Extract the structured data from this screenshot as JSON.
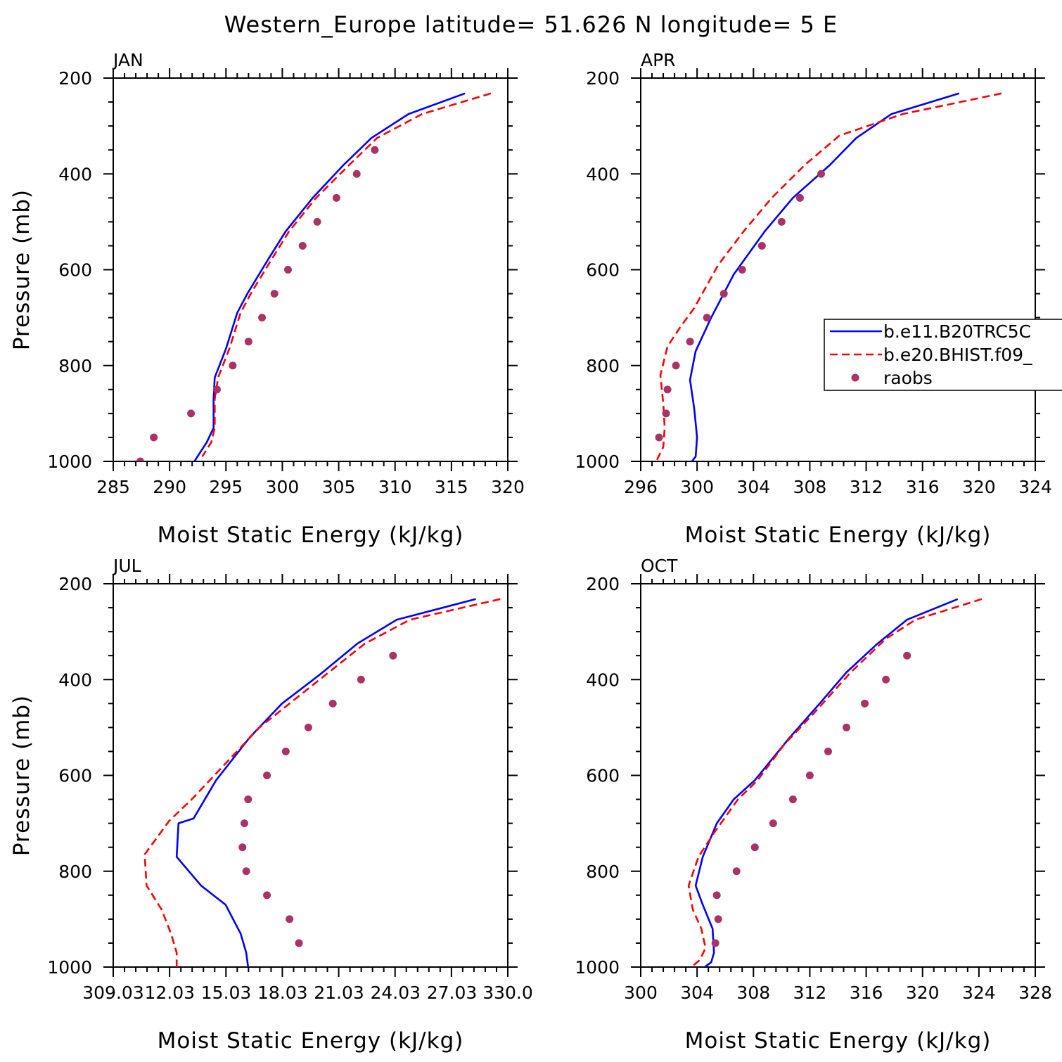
{
  "title": "Western_Europe  latitude= 51.626 N longitude= 5 E",
  "legend": {
    "placement": "inside-right of top-right panel (clipped)",
    "entries": [
      {
        "label": "b.e11.B20TRC5C",
        "color": "#0000ff",
        "style": "solid"
      },
      {
        "label": "b.e20.BHIST.f09_",
        "color": "#ff0000",
        "style": "dashed"
      },
      {
        "label": "raobs",
        "color": "#aa3366",
        "style": "dot"
      }
    ]
  },
  "colors": {
    "model1": "#0000ff",
    "model2": "#ff0000",
    "raobs": "#aa3366"
  },
  "chart_data": [
    {
      "type": "line",
      "panel_title": "JAN",
      "xlabel": "Moist Static Energy (kJ/kg)",
      "ylabel": "Pressure (mb)",
      "xlim": [
        285,
        320
      ],
      "ylim": [
        1000,
        200
      ],
      "xticks": [
        285,
        290,
        295,
        300,
        305,
        310,
        315,
        320
      ],
      "xtick_labels": [
        "285",
        "290",
        "295",
        "300",
        "305",
        "310",
        "315",
        "320"
      ],
      "yticks": [
        200,
        400,
        600,
        800,
        1000
      ],
      "ytick_labels": [
        "200",
        "400",
        "600",
        "800",
        "1000"
      ],
      "series": [
        {
          "name": "b.e11.B20TRC5C",
          "style": "solid",
          "color": "#0000ff",
          "points": [
            [
              316.2,
              232
            ],
            [
              311.2,
              275
            ],
            [
              307.9,
              325
            ],
            [
              305.4,
              382
            ],
            [
              302.7,
              450
            ],
            [
              300.3,
              520
            ],
            [
              298.7,
              580
            ],
            [
              296.9,
              650
            ],
            [
              296.0,
              690
            ],
            [
              295.0,
              765
            ],
            [
              294.0,
              825
            ],
            [
              293.9,
              870
            ],
            [
              293.9,
              930
            ],
            [
              293.3,
              960
            ],
            [
              292.2,
              1000
            ]
          ]
        },
        {
          "name": "b.e20.BHIST.f09_",
          "style": "dashed",
          "color": "#ff0000",
          "points": [
            [
              318.5,
              232
            ],
            [
              312.4,
              275
            ],
            [
              308.4,
              325
            ],
            [
              305.9,
              382
            ],
            [
              303.0,
              450
            ],
            [
              300.6,
              520
            ],
            [
              299.0,
              580
            ],
            [
              297.2,
              650
            ],
            [
              296.3,
              690
            ],
            [
              295.3,
              765
            ],
            [
              294.3,
              825
            ],
            [
              294.0,
              870
            ],
            [
              294.0,
              930
            ],
            [
              293.7,
              960
            ],
            [
              292.9,
              990
            ]
          ]
        },
        {
          "name": "raobs",
          "style": "dot",
          "color": "#aa3366",
          "points": [
            [
              308.2,
              350
            ],
            [
              306.6,
              400
            ],
            [
              304.8,
              450
            ],
            [
              303.1,
              500
            ],
            [
              301.8,
              550
            ],
            [
              300.5,
              600
            ],
            [
              299.3,
              650
            ],
            [
              298.2,
              700
            ],
            [
              297.0,
              750
            ],
            [
              295.6,
              800
            ],
            [
              294.2,
              850
            ],
            [
              291.9,
              900
            ],
            [
              288.6,
              950
            ],
            [
              287.4,
              1000
            ]
          ]
        }
      ]
    },
    {
      "type": "line",
      "panel_title": "APR",
      "xlabel": "Moist Static Energy (kJ/kg)",
      "ylabel": "",
      "xlim": [
        296,
        324
      ],
      "ylim": [
        1000,
        200
      ],
      "xticks": [
        296,
        300,
        304,
        308,
        312,
        316,
        320,
        324
      ],
      "xtick_labels": [
        "296",
        "300",
        "304",
        "308",
        "312",
        "316",
        "320",
        "324"
      ],
      "yticks": [
        200,
        400,
        600,
        800,
        1000
      ],
      "ytick_labels": [
        "200",
        "400",
        "600",
        "800",
        "1000"
      ],
      "series": [
        {
          "name": "b.e11.B20TRC5C",
          "style": "solid",
          "color": "#0000ff",
          "points": [
            [
              318.6,
              232
            ],
            [
              313.8,
              275
            ],
            [
              311.3,
              325
            ],
            [
              309.4,
              382
            ],
            [
              306.8,
              450
            ],
            [
              304.8,
              520
            ],
            [
              302.6,
              610
            ],
            [
              301.0,
              700
            ],
            [
              299.9,
              770
            ],
            [
              299.5,
              830
            ],
            [
              299.8,
              890
            ],
            [
              300.0,
              950
            ],
            [
              299.9,
              990
            ],
            [
              299.5,
              1005
            ]
          ]
        },
        {
          "name": "b.e20.BHIST.f09_",
          "style": "dashed",
          "color": "#ff0000",
          "points": [
            [
              321.6,
              232
            ],
            [
              314.6,
              275
            ],
            [
              310.1,
              320
            ],
            [
              307.7,
              380
            ],
            [
              305.3,
              450
            ],
            [
              303.3,
              520
            ],
            [
              301.5,
              590
            ],
            [
              299.8,
              680
            ],
            [
              298.8,
              720
            ],
            [
              297.9,
              760
            ],
            [
              297.4,
              820
            ],
            [
              297.6,
              880
            ],
            [
              297.7,
              930
            ],
            [
              297.6,
              970
            ],
            [
              297.1,
              1000
            ]
          ]
        },
        {
          "name": "raobs",
          "style": "dot",
          "color": "#aa3366",
          "points": [
            [
              308.8,
              400
            ],
            [
              307.3,
              450
            ],
            [
              306.0,
              500
            ],
            [
              304.6,
              550
            ],
            [
              303.2,
              600
            ],
            [
              301.9,
              650
            ],
            [
              300.7,
              700
            ],
            [
              299.5,
              750
            ],
            [
              298.5,
              800
            ],
            [
              297.9,
              850
            ],
            [
              297.8,
              900
            ],
            [
              297.3,
              950
            ]
          ]
        }
      ]
    },
    {
      "type": "line",
      "panel_title": "JUL",
      "xlabel": "Moist Static Energy (kJ/kg)",
      "ylabel": "Pressure (mb)",
      "xlim": [
        309.03,
        330.0
      ],
      "ylim": [
        1000,
        200
      ],
      "xticks": [
        309.03,
        312.03,
        315.03,
        318.03,
        321.03,
        324.03,
        327.03,
        330.0
      ],
      "xtick_labels": [
        "309.03",
        "12.03",
        "15.03",
        "18.03",
        "21.03",
        "24.03",
        "27.03",
        "330.0"
      ],
      "yticks": [
        200,
        400,
        600,
        800,
        1000
      ],
      "ytick_labels": [
        "200",
        "400",
        "600",
        "800",
        "1000"
      ],
      "series": [
        {
          "name": "b.e11.B20TRC5C",
          "style": "solid",
          "color": "#0000ff",
          "points": [
            [
              328.3,
              232
            ],
            [
              324.1,
              275
            ],
            [
              322.0,
              325
            ],
            [
              320.0,
              390
            ],
            [
              318.0,
              450
            ],
            [
              316.3,
              520
            ],
            [
              314.5,
              610
            ],
            [
              313.3,
              690
            ],
            [
              312.5,
              700
            ],
            [
              312.4,
              770
            ],
            [
              313.7,
              830
            ],
            [
              315.0,
              870
            ],
            [
              315.8,
              930
            ],
            [
              316.1,
              970
            ],
            [
              316.2,
              1000
            ]
          ]
        },
        {
          "name": "b.e20.BHIST.f09_",
          "style": "dashed",
          "color": "#ff0000",
          "points": [
            [
              329.6,
              232
            ],
            [
              324.8,
              275
            ],
            [
              322.4,
              325
            ],
            [
              320.8,
              375
            ],
            [
              318.4,
              450
            ],
            [
              316.8,
              500
            ],
            [
              314.4,
              600
            ],
            [
              313.2,
              650
            ],
            [
              312.0,
              695
            ],
            [
              310.7,
              765
            ],
            [
              310.8,
              830
            ],
            [
              311.6,
              880
            ],
            [
              312.1,
              930
            ],
            [
              312.4,
              970
            ],
            [
              312.4,
              1000
            ]
          ]
        },
        {
          "name": "raobs",
          "style": "dot",
          "color": "#aa3366",
          "points": [
            [
              323.9,
              350
            ],
            [
              322.2,
              400
            ],
            [
              320.7,
              450
            ],
            [
              319.4,
              500
            ],
            [
              318.2,
              550
            ],
            [
              317.2,
              600
            ],
            [
              316.2,
              650
            ],
            [
              316.0,
              700
            ],
            [
              315.9,
              750
            ],
            [
              316.1,
              800
            ],
            [
              317.2,
              850
            ],
            [
              318.4,
              900
            ],
            [
              318.9,
              950
            ]
          ]
        }
      ]
    },
    {
      "type": "line",
      "panel_title": "OCT",
      "xlabel": "Moist Static Energy (kJ/kg)",
      "ylabel": "",
      "xlim": [
        300,
        328
      ],
      "ylim": [
        1000,
        200
      ],
      "xticks": [
        300,
        304,
        308,
        312,
        316,
        320,
        324,
        328
      ],
      "xtick_labels": [
        "300",
        "304",
        "308",
        "312",
        "316",
        "320",
        "324",
        "328"
      ],
      "yticks": [
        200,
        400,
        600,
        800,
        1000
      ],
      "ytick_labels": [
        "200",
        "400",
        "600",
        "800",
        "1000"
      ],
      "series": [
        {
          "name": "b.e11.B20TRC5C",
          "style": "solid",
          "color": "#0000ff",
          "points": [
            [
              322.5,
              232
            ],
            [
              318.9,
              275
            ],
            [
              316.8,
              325
            ],
            [
              314.6,
              385
            ],
            [
              312.7,
              450
            ],
            [
              310.6,
              520
            ],
            [
              308.1,
              610
            ],
            [
              306.6,
              650
            ],
            [
              305.4,
              700
            ],
            [
              304.4,
              770
            ],
            [
              303.9,
              830
            ],
            [
              304.4,
              870
            ],
            [
              305.1,
              920
            ],
            [
              305.2,
              970
            ],
            [
              305.0,
              990
            ],
            [
              304.3,
              1005
            ]
          ]
        },
        {
          "name": "b.e20.BHIST.f09_",
          "style": "dashed",
          "color": "#ff0000",
          "points": [
            [
              324.2,
              232
            ],
            [
              319.5,
              275
            ],
            [
              317.4,
              315
            ],
            [
              314.9,
              385
            ],
            [
              312.3,
              470
            ],
            [
              310.2,
              535
            ],
            [
              308.3,
              610
            ],
            [
              306.9,
              650
            ],
            [
              305.2,
              720
            ],
            [
              304.1,
              770
            ],
            [
              303.4,
              830
            ],
            [
              303.7,
              880
            ],
            [
              304.3,
              920
            ],
            [
              304.6,
              960
            ],
            [
              304.2,
              985
            ],
            [
              303.6,
              1000
            ]
          ]
        },
        {
          "name": "raobs",
          "style": "dot",
          "color": "#aa3366",
          "points": [
            [
              318.9,
              350
            ],
            [
              317.4,
              400
            ],
            [
              315.9,
              450
            ],
            [
              314.6,
              500
            ],
            [
              313.3,
              550
            ],
            [
              312.0,
              600
            ],
            [
              310.8,
              650
            ],
            [
              309.4,
              700
            ],
            [
              308.1,
              750
            ],
            [
              306.8,
              800
            ],
            [
              305.4,
              850
            ],
            [
              305.5,
              900
            ],
            [
              305.3,
              950
            ]
          ]
        }
      ]
    }
  ]
}
